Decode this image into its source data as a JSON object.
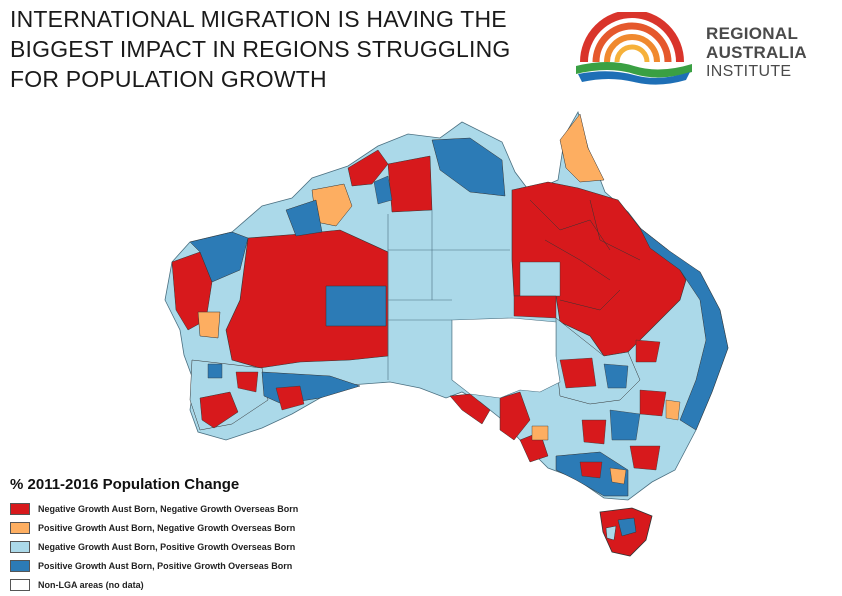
{
  "slide": {
    "title": "INTERNATIONAL MIGRATION IS HAVING THE BIGGEST IMPACT IN REGIONS STRUGGLING FOR POPULATION GROWTH"
  },
  "logo": {
    "line1": "REGIONAL",
    "line2": "AUSTRALIA",
    "line3": "INSTITUTE",
    "colors": {
      "red": "#d9342b",
      "orange": "#f0892e",
      "green": "#3aa043",
      "blue": "#1e6fb6"
    }
  },
  "map": {
    "category_colors": {
      "neg_aust_neg_os": "#d7191c",
      "pos_aust_neg_os": "#fdae61",
      "neg_aust_pos_os": "#abd9e9",
      "pos_aust_pos_os": "#2c7bb6",
      "no_data": "#ffffff"
    }
  },
  "legend": {
    "title": "% 2011-2016 Population Change",
    "items": [
      {
        "label": "Negative Growth Aust Born, Negative Growth Overseas Born",
        "color": "#d7191c"
      },
      {
        "label": "Positive Growth Aust Born, Negative Growth Overseas Born",
        "color": "#fdae61"
      },
      {
        "label": "Negative Growth Aust Born, Positive Growth Overseas Born",
        "color": "#abd9e9"
      },
      {
        "label": "Positive Growth Aust Born, Positive Growth Overseas Born",
        "color": "#2c7bb6"
      },
      {
        "label": "Non-LGA areas (no data)",
        "color": "#ffffff"
      }
    ]
  }
}
